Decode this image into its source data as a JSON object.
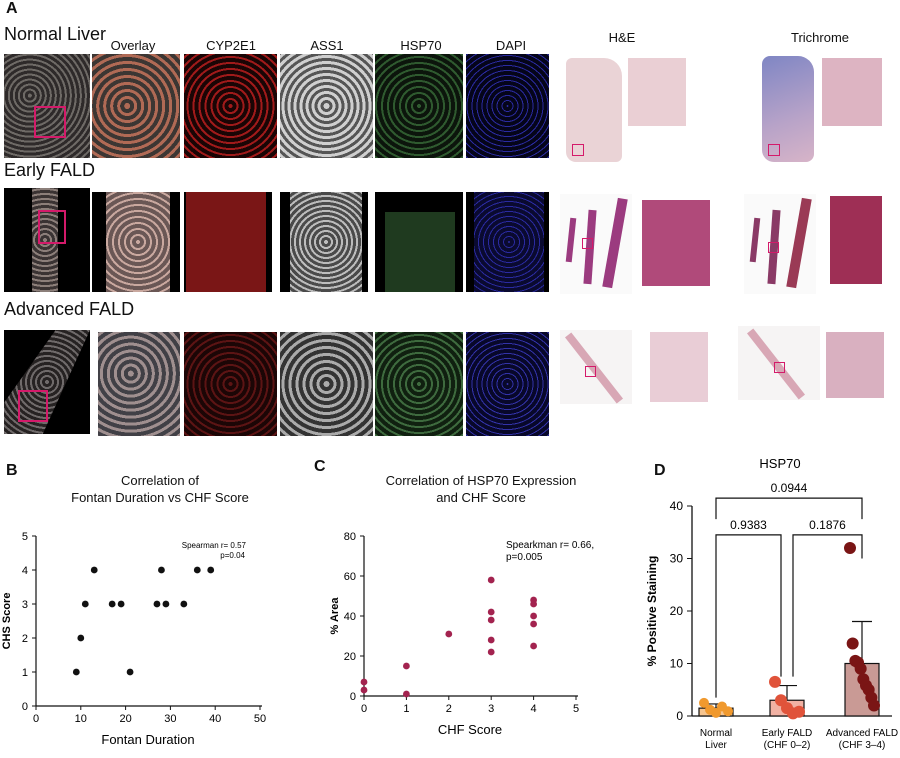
{
  "panel_a": {
    "label": "A",
    "rows": [
      "Normal Liver",
      "Early FALD",
      "Advanced FALD"
    ],
    "channels": [
      "Overlay",
      "CYP2E1",
      "ASS1",
      "HSP70",
      "DAPI"
    ],
    "histology": [
      "H&E",
      "Trichrome"
    ]
  },
  "panel_b": {
    "label": "B"
  },
  "panel_c": {
    "label": "C"
  },
  "panel_d": {
    "label": "D"
  },
  "colors": {
    "scatter_b": "#111111",
    "scatter_c": "#a3234f",
    "normal": "#f0992e",
    "early": "#e0533a",
    "advanced": "#7a1515",
    "roi_box": "#d41a6a"
  },
  "chart_data": [
    {
      "type": "scatter",
      "title": "Correlation of Fontan Duration vs CHF Score",
      "title_lines": [
        "Correlation of",
        "Fontan Duration vs CHF Score"
      ],
      "xlabel": "Fontan Duration",
      "ylabel": "CHS Score",
      "xlim": [
        0,
        50
      ],
      "ylim": [
        0,
        5
      ],
      "xticks": [
        0,
        10,
        20,
        30,
        40,
        50
      ],
      "yticks": [
        0,
        1,
        2,
        3,
        4,
        5
      ],
      "annotation": [
        "Spearman r= 0.57",
        "p=0.04"
      ],
      "points": [
        [
          9,
          1
        ],
        [
          10,
          2
        ],
        [
          11,
          3
        ],
        [
          13,
          4
        ],
        [
          17,
          3
        ],
        [
          19,
          3
        ],
        [
          21,
          1
        ],
        [
          27,
          3
        ],
        [
          28,
          4
        ],
        [
          29,
          3
        ],
        [
          33,
          3
        ],
        [
          36,
          4
        ],
        [
          39,
          4
        ]
      ]
    },
    {
      "type": "scatter",
      "title": "Correlation of HSP70 Expression and CHF Score",
      "title_lines": [
        "Correlation of HSP70 Expression",
        "and CHF Score"
      ],
      "xlabel": "CHF Score",
      "ylabel": "% Area",
      "xlim": [
        0,
        5
      ],
      "ylim": [
        0,
        80
      ],
      "xticks": [
        0,
        1,
        2,
        3,
        4,
        5
      ],
      "yticks": [
        0,
        20,
        40,
        60,
        80
      ],
      "annotation": [
        "Spearkman r= 0.66,",
        "p=0.005"
      ],
      "points": [
        [
          0,
          7
        ],
        [
          0,
          3
        ],
        [
          1,
          15
        ],
        [
          1,
          1
        ],
        [
          2,
          31
        ],
        [
          3,
          58
        ],
        [
          3,
          42
        ],
        [
          3,
          38
        ],
        [
          3,
          28
        ],
        [
          3,
          22
        ],
        [
          4,
          48
        ],
        [
          4,
          46
        ],
        [
          4,
          40
        ],
        [
          4,
          36
        ],
        [
          4,
          25
        ]
      ]
    },
    {
      "type": "bar",
      "title": "HSP70",
      "ylabel": "% Positive Staining",
      "ylim": [
        0,
        40
      ],
      "yticks": [
        0,
        10,
        20,
        30,
        40
      ],
      "categories": [
        [
          "Normal",
          "Liver"
        ],
        [
          "Early FALD",
          "(CHF 0–2)"
        ],
        [
          "Advanced FALD",
          "(CHF 3–4)"
        ]
      ],
      "means": [
        1.5,
        3.0,
        10.0
      ],
      "errors": [
        0.8,
        2.8,
        8.0
      ],
      "points": [
        [
          2.5,
          1.2,
          0.6,
          1.8,
          0.9
        ],
        [
          6.5,
          3.0,
          1.5,
          0.5,
          0.8
        ],
        [
          32,
          13.8,
          10.5,
          10.2,
          9.0,
          7.0,
          5.8,
          5.0,
          3.5,
          2.0
        ]
      ],
      "comparisons": [
        {
          "pair": [
            0,
            1
          ],
          "p": "0.9383"
        },
        {
          "pair": [
            1,
            2
          ],
          "p": "0.1876"
        },
        {
          "pair": [
            0,
            2
          ],
          "p": "0.0944"
        }
      ]
    }
  ]
}
